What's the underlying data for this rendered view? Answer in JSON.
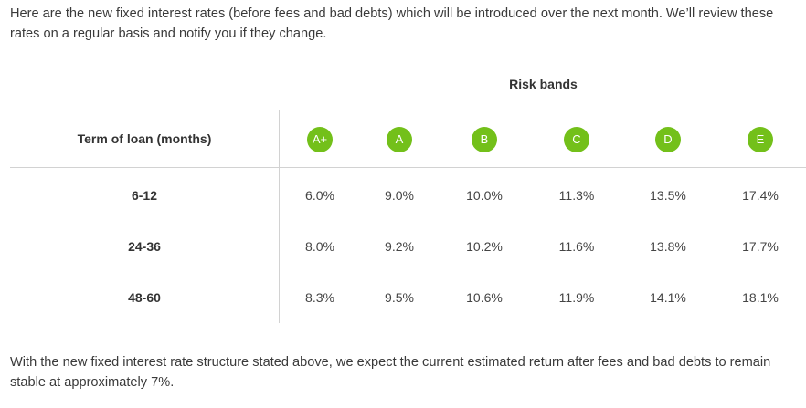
{
  "intro_text": "Here are the new fixed interest rates (before fees and bad debts) which will be introduced over the next month. We’ll review these rates on a regular basis and notify you if they change.",
  "table": {
    "risk_heading": "Risk bands",
    "term_heading": "Term of loan (months)",
    "bands": [
      "A+",
      "A",
      "B",
      "C",
      "D",
      "E"
    ],
    "rows": [
      {
        "term": "6-12",
        "rates": [
          "6.0%",
          "9.0%",
          "10.0%",
          "11.3%",
          "13.5%",
          "17.4%"
        ]
      },
      {
        "term": "24-36",
        "rates": [
          "8.0%",
          "9.2%",
          "10.2%",
          "11.6%",
          "13.8%",
          "17.7%"
        ]
      },
      {
        "term": "48-60",
        "rates": [
          "8.3%",
          "9.5%",
          "10.6%",
          "11.9%",
          "14.1%",
          "18.1%"
        ]
      }
    ],
    "badge_color": "#73c01a"
  },
  "outro_text": "With the new fixed interest rate structure stated above, we expect the current estimated return after fees and bad debts to remain stable at approximately 7%."
}
